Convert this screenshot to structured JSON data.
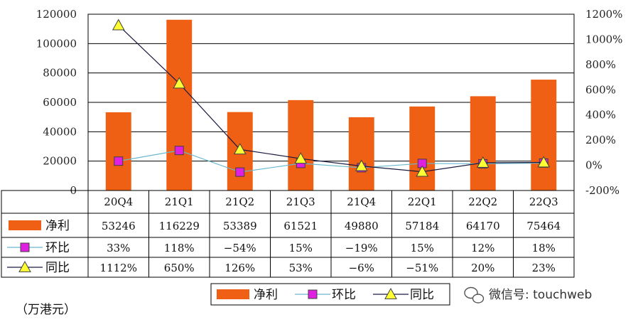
{
  "chart_data": {
    "type": "bar",
    "categories": [
      "20Q4",
      "21Q1",
      "21Q2",
      "21Q3",
      "21Q4",
      "22Q1",
      "22Q2",
      "22Q3"
    ],
    "unit_label": "（万港元）",
    "y_left": {
      "ylim": [
        0,
        120000
      ],
      "ticks": [
        0,
        20000,
        40000,
        60000,
        80000,
        100000,
        120000
      ],
      "tick_labels": [
        "0",
        "20000",
        "40000",
        "60000",
        "80000",
        "100000",
        "120000"
      ]
    },
    "y_right": {
      "ylim": [
        -200,
        1200
      ],
      "ticks": [
        -200,
        0,
        200,
        400,
        600,
        800,
        1000,
        1200
      ],
      "tick_labels": [
        "-200%",
        "0%",
        "200%",
        "400%",
        "600%",
        "800%",
        "1000%",
        "1200%"
      ]
    },
    "series": [
      {
        "name": "净利",
        "kind": "bar",
        "axis": "left",
        "color": "#f06014",
        "values": [
          53246,
          116229,
          53389,
          61521,
          49880,
          57184,
          64170,
          75464
        ],
        "labels": [
          "53246",
          "116229",
          "53389",
          "61521",
          "49880",
          "57184",
          "64170",
          "75464"
        ]
      },
      {
        "name": "环比",
        "kind": "line",
        "axis": "right",
        "color": "#6ab8d0",
        "marker": "square",
        "marker_color": "#e020e0",
        "values": [
          33,
          118,
          -54,
          15,
          -19,
          15,
          12,
          18
        ],
        "labels": [
          "33%",
          "118%",
          "−54%",
          "15%",
          "−19%",
          "15%",
          "12%",
          "18%"
        ]
      },
      {
        "name": "同比",
        "kind": "line",
        "axis": "right",
        "color": "#1a1a40",
        "marker": "triangle",
        "marker_color": "#ffff33",
        "values": [
          1112,
          650,
          126,
          53,
          -6,
          -51,
          20,
          23
        ],
        "labels": [
          "1112%",
          "650%",
          "126%",
          "53%",
          "−6%",
          "−51%",
          "20%",
          "23%"
        ]
      }
    ],
    "legend": {
      "placement": "bottom",
      "items": [
        "净利",
        "环比",
        "同比"
      ]
    },
    "data_table": true,
    "grid": "horizontal"
  },
  "watermark": {
    "text": "微信号: touchweb"
  }
}
